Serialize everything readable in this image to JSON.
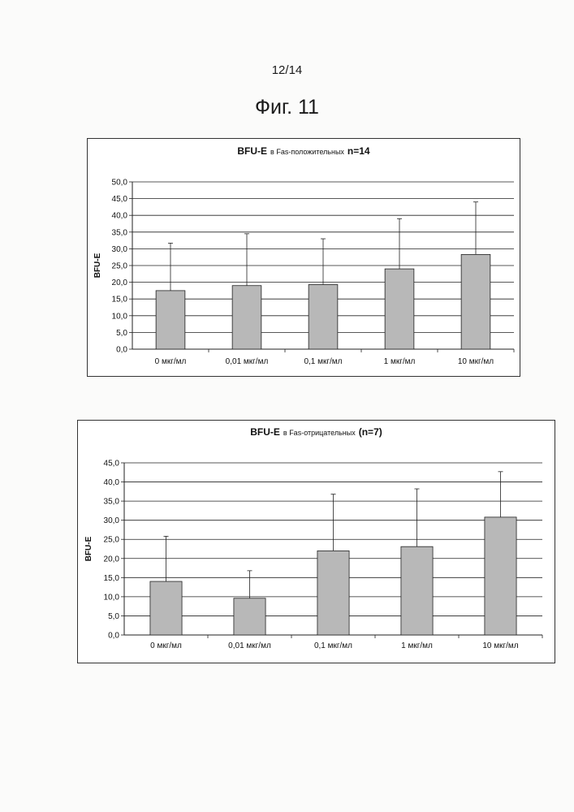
{
  "page": {
    "number": "12/14",
    "figure_title": "Фиг. 11"
  },
  "chart_data": [
    {
      "type": "bar",
      "title_main": "BFU-E",
      "title_mid": "в Fas-положительных",
      "title_end": "n=14",
      "ylabel": "BFU-E",
      "categories": [
        "0 мкг/мл",
        "0,01 мкг/мл",
        "0,1 мкг/мл",
        "1 мкг/мл",
        "10 мкг/мл"
      ],
      "values": [
        17.5,
        19.0,
        19.3,
        24.0,
        28.3
      ],
      "error_upper": [
        31.7,
        34.5,
        33.0,
        39.0,
        44.0
      ],
      "ylim": [
        0,
        50
      ],
      "ytick_step": 5,
      "ytick_labels": [
        "0,0",
        "5,0",
        "10,0",
        "15,0",
        "20,0",
        "25,0",
        "30,0",
        "35,0",
        "40,0",
        "45,0",
        "50,0"
      ],
      "grid": true,
      "bar_color": "#b8b8b8"
    },
    {
      "type": "bar",
      "title_main": "BFU-E",
      "title_mid": "в Fas-отрицательных",
      "title_end": "(n=7)",
      "ylabel": "BFU-E",
      "categories": [
        "0 мкг/мл",
        "0,01 мкг/мл",
        "0,1 мкг/мл",
        "1 мкг/мл",
        "10 мкг/мл"
      ],
      "values": [
        14.0,
        9.6,
        22.0,
        23.1,
        30.8
      ],
      "error_upper": [
        25.8,
        16.8,
        36.8,
        38.2,
        42.7
      ],
      "ylim": [
        0,
        45
      ],
      "ytick_step": 5,
      "ytick_labels": [
        "0,0",
        "5,0",
        "10,0",
        "15,0",
        "20,0",
        "25,0",
        "30,0",
        "35,0",
        "40,0",
        "45,0"
      ],
      "grid": true,
      "bar_color": "#b8b8b8"
    }
  ]
}
